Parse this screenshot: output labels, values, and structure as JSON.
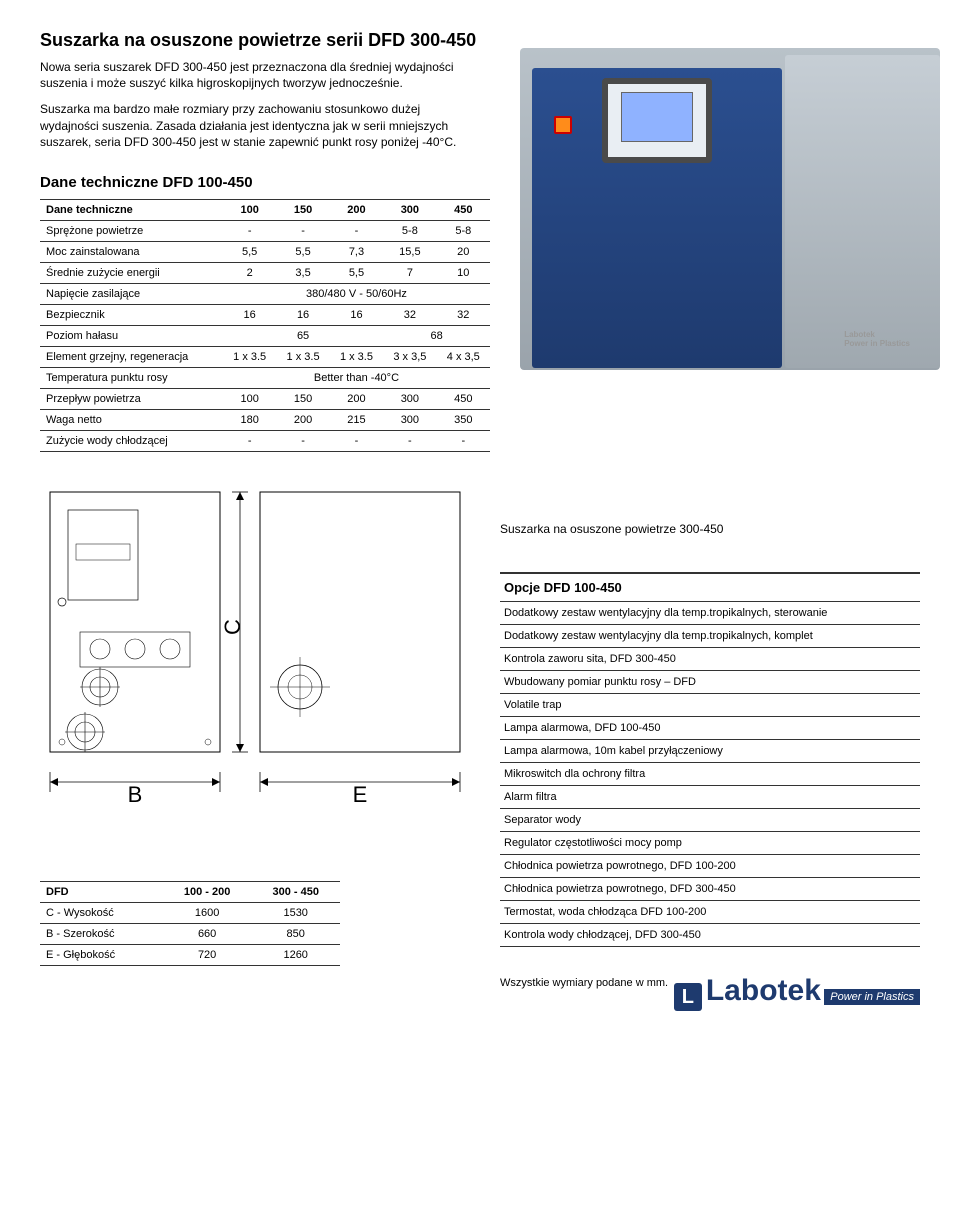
{
  "title": "Suszarka na osuszone powietrze serii DFD 300-450",
  "intro": {
    "p1": "Nowa seria suszarek DFD 300-450 jest przeznaczona dla średniej wydajności suszenia i może suszyć kilka higroskopijnych tworzyw jednocześnie.",
    "p2": "Suszarka ma bardzo małe rozmiary przy zachowaniu stosunkowo dużej wydajności suszenia. Zasada działania jest identyczna jak w serii mniejszych suszarek, seria DFD 300-450 jest w stanie zapewnić punkt rosy poniżej -40°C."
  },
  "spec": {
    "heading": "Dane techniczne DFD 100-450",
    "header_label": "Dane techniczne",
    "cols": [
      "100",
      "150",
      "200",
      "300",
      "450"
    ],
    "rows": [
      {
        "label": "Sprężone powietrze",
        "vals": [
          "-",
          "-",
          "-",
          "5-8",
          "5-8"
        ]
      },
      {
        "label": "Moc zainstalowana",
        "vals": [
          "5,5",
          "5,5",
          "7,3",
          "15,5",
          "20"
        ]
      },
      {
        "label": "Średnie zużycie energii",
        "vals": [
          "2",
          "3,5",
          "5,5",
          "7",
          "10"
        ]
      },
      {
        "label": "Napięcie zasilające",
        "span": "380/480 V - 50/60Hz"
      },
      {
        "label": "Bezpiecznik",
        "vals": [
          "16",
          "16",
          "16",
          "32",
          "32"
        ]
      },
      {
        "label": "Poziom hałasu",
        "spans": [
          {
            "text": "65",
            "cols": 3
          },
          {
            "text": "68",
            "cols": 2
          }
        ]
      },
      {
        "label": "Element grzejny, regeneracja",
        "vals": [
          "1 x 3.5",
          "1 x 3.5",
          "1 x 3.5",
          "3 x 3,5",
          "4 x 3,5"
        ]
      },
      {
        "label": "Temperatura punktu rosy",
        "span": "Better than -40°C"
      },
      {
        "label": "Przepływ powietrza",
        "vals": [
          "100",
          "150",
          "200",
          "300",
          "450"
        ]
      },
      {
        "label": "Waga netto",
        "vals": [
          "180",
          "200",
          "215",
          "300",
          "350"
        ]
      },
      {
        "label": "Zużycie wody chłodzącej",
        "vals": [
          "-",
          "-",
          "-",
          "-",
          "-"
        ]
      }
    ]
  },
  "caption": "Suszarka na osuszone powietrze 300-450",
  "options": {
    "title": "Opcje DFD 100-450",
    "items": [
      "Dodatkowy zestaw wentylacyjny dla temp.tropikalnych, sterowanie",
      "Dodatkowy zestaw wentylacyjny dla temp.tropikalnych, komplet",
      "Kontrola zaworu sita, DFD 300-450",
      "Wbudowany pomiar punktu rosy – DFD",
      "Volatile trap",
      "Lampa alarmowa, DFD 100-450",
      "Lampa alarmowa, 10m kabel przyłączeniowy",
      "Mikroswitch dla ochrony filtra",
      "Alarm filtra",
      "Separator wody",
      "Regulator częstotliwości mocy pomp",
      "Chłodnica powietrza powrotnego, DFD 100-200",
      "Chłodnica powietrza powrotnego, DFD 300-450",
      "Termostat, woda chłodząca DFD 100-200",
      "Kontrola wody chłodzącej, DFD 300-450"
    ]
  },
  "dims": {
    "header": "DFD",
    "cols": [
      "100 - 200",
      "300 - 450"
    ],
    "rows": [
      {
        "label": "C - Wysokość",
        "vals": [
          "1600",
          "1530"
        ]
      },
      {
        "label": "B - Szerokość",
        "vals": [
          "660",
          "850"
        ]
      },
      {
        "label": "E - Głębokość",
        "vals": [
          "720",
          "1260"
        ]
      }
    ]
  },
  "dim_labels": {
    "B": "B",
    "C": "C",
    "E": "E"
  },
  "note": "Wszystkie wymiary podane w mm.",
  "brand": {
    "name": "Labotek",
    "tag": "Power in Plastics"
  },
  "colors": {
    "brand_blue": "#1e3a6e"
  }
}
